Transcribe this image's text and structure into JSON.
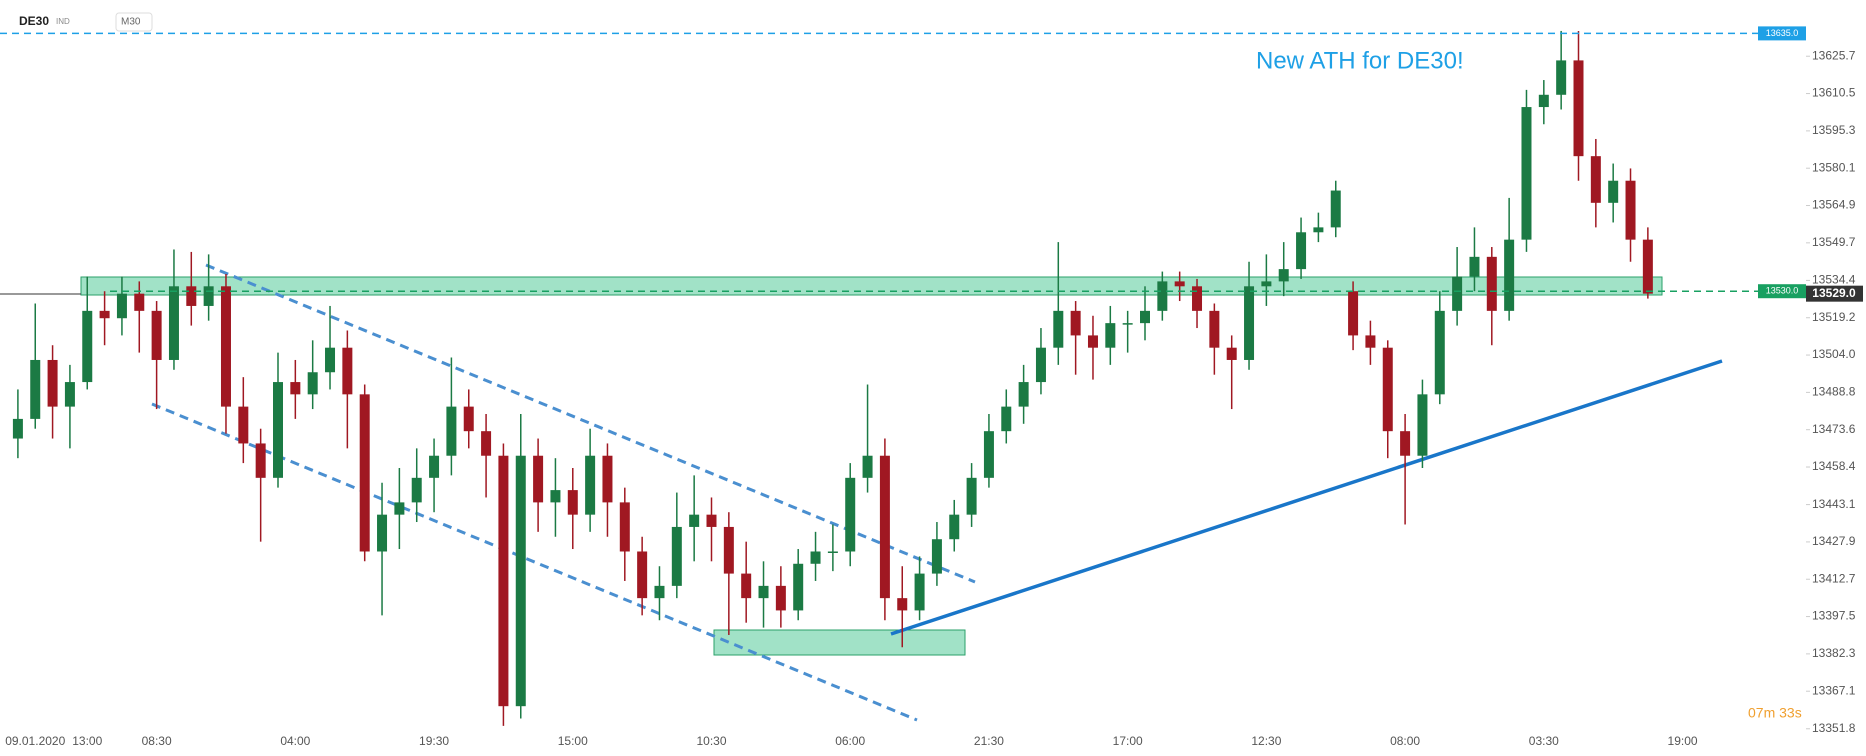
{
  "chart_data": {
    "type": "candlestick",
    "symbol": "DE30",
    "market": "IND",
    "interval": "M30",
    "annotation": "New ATH for DE30!",
    "timer": "07m 33s",
    "up_color": "#1b7a44",
    "down_color": "#a01822",
    "categories": [
      null,
      "09.01.2020",
      null,
      null,
      "13:00",
      null,
      null,
      null,
      "08:30",
      null,
      null,
      null,
      null,
      null,
      null,
      null,
      "04:00",
      null,
      null,
      null,
      null,
      null,
      null,
      null,
      "19:30",
      null,
      null,
      null,
      null,
      null,
      null,
      null,
      "15:00",
      null,
      null,
      null,
      null,
      null,
      null,
      null,
      "10:30",
      null,
      null,
      null,
      null,
      null,
      null,
      null,
      "06:00",
      null,
      null,
      null,
      null,
      null,
      null,
      null,
      "21:30",
      null,
      null,
      null,
      null,
      null,
      null,
      null,
      "17:00",
      null,
      null,
      null,
      null,
      null,
      null,
      null,
      "12:30",
      null,
      null,
      null,
      null,
      null,
      null,
      null,
      "08:00",
      null,
      null,
      null,
      null,
      null,
      null,
      null,
      "03:30",
      null,
      null,
      null,
      null,
      null,
      null,
      null,
      "19:00"
    ],
    "series": [
      {
        "name": "DE30",
        "values": [
          [
            13470,
            13490,
            13462,
            13478
          ],
          [
            13478,
            13525,
            13474,
            13502
          ],
          [
            13502,
            13508,
            13470,
            13483
          ],
          [
            13483,
            13500,
            13466,
            13493
          ],
          [
            13493,
            13536,
            13490,
            13522
          ],
          [
            13522,
            13530,
            13508,
            13519
          ],
          [
            13519,
            13536,
            13512,
            13529
          ],
          [
            13529,
            13534,
            13505,
            13522
          ],
          [
            13522,
            13526,
            13482,
            13502
          ],
          [
            13502,
            13547,
            13498,
            13532
          ],
          [
            13532,
            13546,
            13516,
            13524
          ],
          [
            13524,
            13545,
            13518,
            13532
          ],
          [
            13532,
            13537,
            13472,
            13483
          ],
          [
            13483,
            13495,
            13460,
            13468
          ],
          [
            13468,
            13474,
            13428,
            13454
          ],
          [
            13454,
            13505,
            13450,
            13493
          ],
          [
            13493,
            13502,
            13478,
            13488
          ],
          [
            13488,
            13510,
            13482,
            13497
          ],
          [
            13497,
            13524,
            13490,
            13507
          ],
          [
            13507,
            13514,
            13466,
            13488
          ],
          [
            13488,
            13492,
            13420,
            13424
          ],
          [
            13424,
            13452,
            13398,
            13439
          ],
          [
            13439,
            13458,
            13425,
            13444
          ],
          [
            13444,
            13466,
            13436,
            13454
          ],
          [
            13454,
            13470,
            13440,
            13463
          ],
          [
            13463,
            13503,
            13455,
            13483
          ],
          [
            13483,
            13490,
            13466,
            13473
          ],
          [
            13473,
            13480,
            13446,
            13463
          ],
          [
            13463,
            13468,
            13353,
            13361
          ],
          [
            13361,
            13480,
            13356,
            13463
          ],
          [
            13463,
            13470,
            13432,
            13444
          ],
          [
            13444,
            13462,
            13430,
            13449
          ],
          [
            13449,
            13458,
            13425,
            13439
          ],
          [
            13439,
            13474,
            13432,
            13463
          ],
          [
            13463,
            13468,
            13430,
            13444
          ],
          [
            13444,
            13450,
            13412,
            13424
          ],
          [
            13424,
            13430,
            13398,
            13405
          ],
          [
            13405,
            13418,
            13396,
            13410
          ],
          [
            13410,
            13448,
            13405,
            13434
          ],
          [
            13434,
            13455,
            13420,
            13439
          ],
          [
            13439,
            13446,
            13420,
            13434
          ],
          [
            13434,
            13440,
            13390,
            13415
          ],
          [
            13415,
            13428,
            13395,
            13405
          ],
          [
            13405,
            13420,
            13393,
            13410
          ],
          [
            13410,
            13418,
            13393,
            13400
          ],
          [
            13400,
            13425,
            13396,
            13419
          ],
          [
            13419,
            13432,
            13412,
            13424
          ],
          [
            13424,
            13435,
            13416,
            13424
          ],
          [
            13424,
            13460,
            13418,
            13454
          ],
          [
            13454,
            13492,
            13448,
            13463
          ],
          [
            13463,
            13470,
            13396,
            13405
          ],
          [
            13405,
            13418,
            13385,
            13400
          ],
          [
            13400,
            13422,
            13396,
            13415
          ],
          [
            13415,
            13436,
            13410,
            13429
          ],
          [
            13429,
            13445,
            13424,
            13439
          ],
          [
            13439,
            13460,
            13434,
            13454
          ],
          [
            13454,
            13480,
            13450,
            13473
          ],
          [
            13473,
            13490,
            13468,
            13483
          ],
          [
            13483,
            13500,
            13476,
            13493
          ],
          [
            13493,
            13515,
            13488,
            13507
          ],
          [
            13507,
            13550,
            13500,
            13522
          ],
          [
            13522,
            13526,
            13496,
            13512
          ],
          [
            13512,
            13520,
            13494,
            13507
          ],
          [
            13507,
            13524,
            13500,
            13517
          ],
          [
            13517,
            13522,
            13505,
            13517
          ],
          [
            13517,
            13532,
            13510,
            13522
          ],
          [
            13522,
            13538,
            13518,
            13534
          ],
          [
            13534,
            13538,
            13526,
            13532
          ],
          [
            13532,
            13535,
            13515,
            13522
          ],
          [
            13522,
            13525,
            13496,
            13507
          ],
          [
            13507,
            13512,
            13482,
            13502
          ],
          [
            13502,
            13542,
            13498,
            13532
          ],
          [
            13532,
            13545,
            13524,
            13534
          ],
          [
            13534,
            13550,
            13528,
            13539
          ],
          [
            13539,
            13560,
            13535,
            13554
          ],
          [
            13554,
            13562,
            13550,
            13556
          ],
          [
            13556,
            13575,
            13552,
            13571
          ],
          [
            13530,
            13534,
            13506,
            13512
          ],
          [
            13512,
            13518,
            13500,
            13507
          ],
          [
            13507,
            13510,
            13462,
            13473
          ],
          [
            13473,
            13480,
            13435,
            13463
          ],
          [
            13463,
            13494,
            13458,
            13488
          ],
          [
            13488,
            13530,
            13484,
            13522
          ],
          [
            13522,
            13548,
            13516,
            13536
          ],
          [
            13536,
            13556,
            13530,
            13544
          ],
          [
            13544,
            13548,
            13508,
            13522
          ],
          [
            13522,
            13568,
            13518,
            13551
          ],
          [
            13551,
            13612,
            13546,
            13605
          ],
          [
            13605,
            13616,
            13598,
            13610
          ],
          [
            13610,
            13636,
            13604,
            13624
          ],
          [
            13624,
            13636,
            13575,
            13585
          ],
          [
            13585,
            13592,
            13556,
            13566
          ],
          [
            13566,
            13582,
            13558,
            13575
          ],
          [
            13575,
            13580,
            13542,
            13551
          ],
          [
            13551,
            13556,
            13527,
            13529
          ],
          null,
          null
        ]
      }
    ],
    "ylim": [
      13351.3,
      13648.6
    ],
    "yticks": [
      13625.7,
      13610.5,
      13595.3,
      13580.1,
      13564.9,
      13549.7,
      13534.4,
      13519.2,
      {
        "value": 13504,
        "label": "13504.0"
      },
      13488.8,
      13473.6,
      13458.4,
      13443.1,
      13427.9,
      13412.7,
      13397.5,
      13382.3,
      13367.1,
      13351.8
    ],
    "levels": [
      {
        "value": 13635,
        "label": "13635.0",
        "color": "#1ea0e6"
      },
      {
        "value": 13530,
        "label": "13530.0",
        "color": "#18a061"
      }
    ],
    "last_price": {
      "value": 13529,
      "label": "13529.0"
    }
  }
}
